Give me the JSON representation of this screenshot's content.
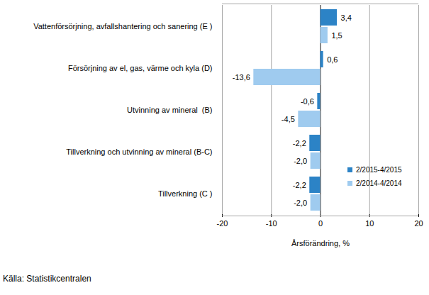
{
  "chart_data": {
    "type": "bar",
    "orientation": "horizontal",
    "x_label": "Årsförändring, %",
    "source": "Källa: Statistikcentralen",
    "categories": [
      "Vattenförsörjning, avfallshantering och sanering (E )",
      "Försörjning av el, gas, värme och kyla (D)",
      "Utvinning av mineral  (B)",
      "Tillverkning och utvinning av mineral (B-C)",
      "Tillverkning (C )"
    ],
    "series": [
      {
        "name": "2/2015-4/2015",
        "color": "#2c83c6",
        "values": [
          3.4,
          0.6,
          -0.6,
          -2.2,
          -2.2
        ],
        "value_labels": [
          "3,4",
          "0,6",
          "-0,6",
          "-2,2",
          "-2,2"
        ]
      },
      {
        "name": "2/2014-4/2014",
        "color": "#9fcbef",
        "values": [
          1.5,
          -13.6,
          -4.5,
          -2.0,
          -2.0
        ],
        "value_labels": [
          "1,5",
          "-13,6",
          "-4,5",
          "-2,0",
          "-2,0"
        ]
      }
    ],
    "xlim": [
      -20,
      20
    ],
    "xticks": [
      -20,
      -10,
      0,
      10,
      20
    ],
    "grid": true,
    "data_labels": true,
    "legend": "lower right"
  }
}
